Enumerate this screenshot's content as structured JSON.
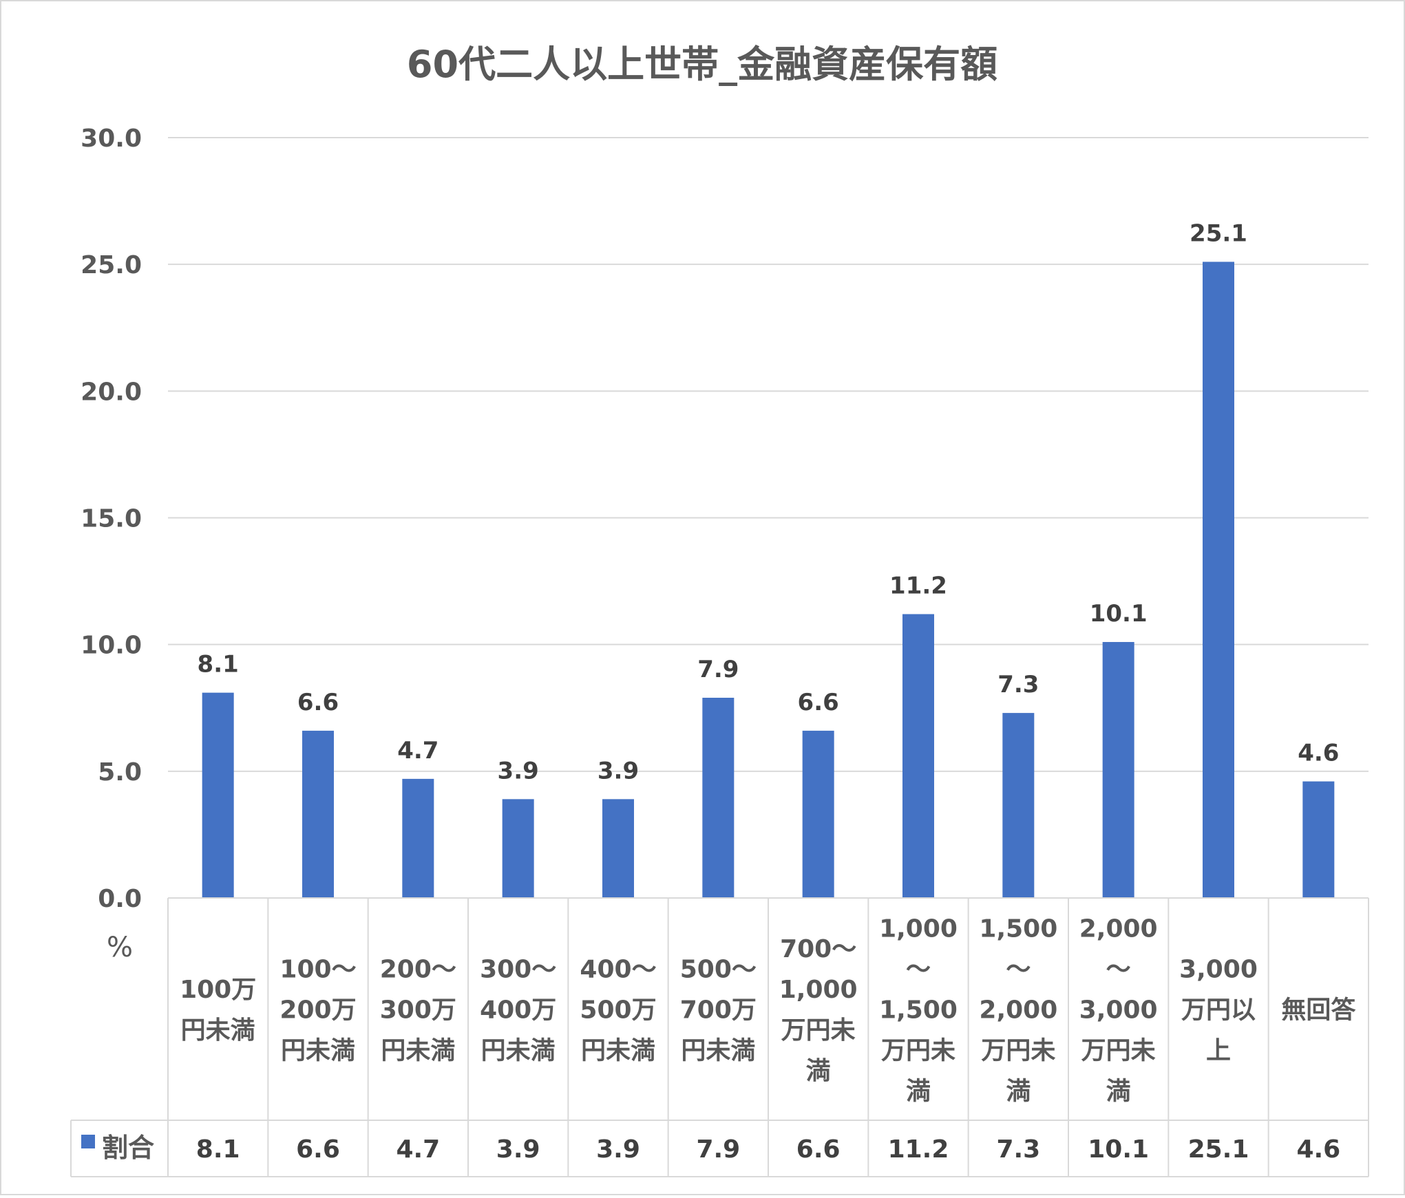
{
  "chart_data": {
    "type": "bar",
    "title": "60代二人以上世帯_金融資産保有額",
    "ylabel": "%",
    "ylim": [
      0,
      30
    ],
    "yticks": [
      "0.0",
      "5.0",
      "10.0",
      "15.0",
      "20.0",
      "25.0",
      "30.0"
    ],
    "grid": true,
    "legend_in_table": true,
    "categories": [
      [
        "100万",
        "円未満"
      ],
      [
        "100〜",
        "200万",
        "円未満"
      ],
      [
        "200〜",
        "300万",
        "円未満"
      ],
      [
        "300〜",
        "400万",
        "円未満"
      ],
      [
        "400〜",
        "500万",
        "円未満"
      ],
      [
        "500〜",
        "700万",
        "円未満"
      ],
      [
        "700〜",
        "1,000",
        "万円未",
        "満"
      ],
      [
        "1,000",
        "〜",
        "1,500",
        "万円未",
        "満"
      ],
      [
        "1,500",
        "〜",
        "2,000",
        "万円未",
        "満"
      ],
      [
        "2,000",
        "〜",
        "3,000",
        "万円未",
        "満"
      ],
      [
        "3,000",
        "万円以",
        "上"
      ],
      [
        "無回答"
      ]
    ],
    "series": [
      {
        "name": "割合",
        "color": "#4472C4",
        "values": [
          8.1,
          6.6,
          4.7,
          3.9,
          3.9,
          7.9,
          6.6,
          11.2,
          7.3,
          10.1,
          25.1,
          4.6
        ],
        "labels": [
          "8.1",
          "6.6",
          "4.7",
          "3.9",
          "3.9",
          "7.9",
          "6.6",
          "11.2",
          "7.3",
          "10.1",
          "25.1",
          "4.6"
        ]
      }
    ]
  }
}
